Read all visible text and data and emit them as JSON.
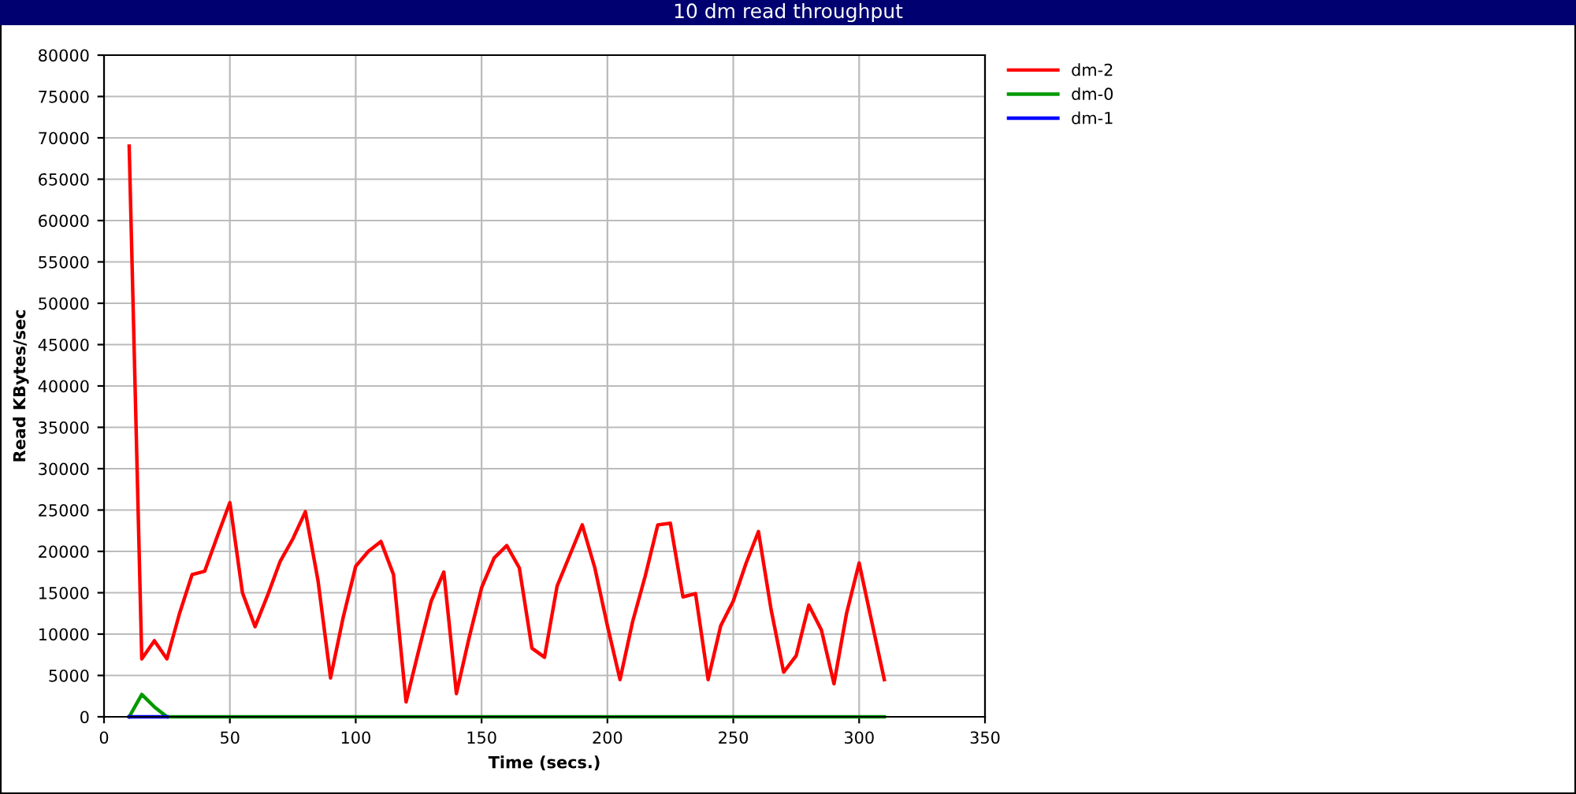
{
  "chart_data": {
    "type": "line",
    "title": "10 dm read throughput",
    "xlabel": "Time (secs.)",
    "ylabel": "Read KBytes/sec",
    "x": [
      10,
      15,
      20,
      25,
      30,
      35,
      40,
      45,
      50,
      55,
      60,
      65,
      70,
      75,
      80,
      85,
      90,
      95,
      100,
      105,
      110,
      115,
      120,
      125,
      130,
      135,
      140,
      145,
      150,
      155,
      160,
      165,
      170,
      175,
      180,
      185,
      190,
      195,
      200,
      205,
      210,
      215,
      220,
      225,
      230,
      235,
      240,
      245,
      250,
      255,
      260,
      265,
      270,
      275,
      280,
      285,
      290,
      295,
      300,
      305,
      310
    ],
    "series": [
      {
        "name": "dm-2",
        "color": "#ff0000",
        "values": [
          69000,
          7000,
          9200,
          7000,
          12500,
          17200,
          17600,
          21800,
          25900,
          15000,
          10900,
          14700,
          18800,
          21500,
          24800,
          16500,
          4700,
          12000,
          18200,
          20000,
          21200,
          17200,
          1800,
          8000,
          14000,
          17500,
          2800,
          9500,
          15600,
          19200,
          20700,
          18000,
          8300,
          7200,
          15800,
          19500,
          23200,
          18000,
          11000,
          4500,
          11500,
          17000,
          23200,
          23400,
          14500,
          14900,
          4500,
          11000,
          14000,
          18500,
          22400,
          13000,
          5400,
          7400,
          13500,
          10500,
          4000,
          12500,
          18600,
          11500,
          4500
        ]
      },
      {
        "name": "dm-0",
        "color": "#009900",
        "values": [
          0,
          2700,
          1200,
          0,
          0,
          0,
          0,
          0,
          0,
          0,
          0,
          0,
          0,
          0,
          0,
          0,
          0,
          0,
          0,
          0,
          0,
          0,
          0,
          0,
          0,
          0,
          0,
          0,
          0,
          0,
          0,
          0,
          0,
          0,
          0,
          0,
          0,
          0,
          0,
          0,
          0,
          0,
          0,
          0,
          0,
          0,
          0,
          0,
          0,
          0,
          0,
          0,
          0,
          0,
          0,
          0,
          0,
          0,
          0,
          0,
          0
        ]
      },
      {
        "name": "dm-1",
        "color": "#0000ff",
        "values": [
          0,
          0,
          0,
          0,
          null,
          null,
          null,
          null,
          null,
          null,
          null,
          null,
          null,
          null,
          null,
          null,
          null,
          null,
          null,
          null,
          null,
          null,
          null,
          null,
          null,
          null,
          null,
          null,
          null,
          null,
          null,
          null,
          null,
          null,
          null,
          null,
          null,
          null,
          null,
          null,
          null,
          null,
          null,
          null,
          null,
          null,
          null,
          null,
          null,
          null,
          null,
          null,
          null,
          null,
          null,
          null,
          null,
          null,
          null,
          null,
          null
        ]
      }
    ],
    "xlim": [
      0,
      350
    ],
    "xticks": [
      0,
      50,
      100,
      150,
      200,
      250,
      300,
      350
    ],
    "ylim": [
      0,
      80000
    ],
    "yticks": [
      0,
      5000,
      10000,
      15000,
      20000,
      25000,
      30000,
      35000,
      40000,
      45000,
      50000,
      55000,
      60000,
      65000,
      70000,
      75000,
      80000
    ],
    "grid": true,
    "legend": "top right",
    "marker": "none",
    "line_style": "solid"
  }
}
